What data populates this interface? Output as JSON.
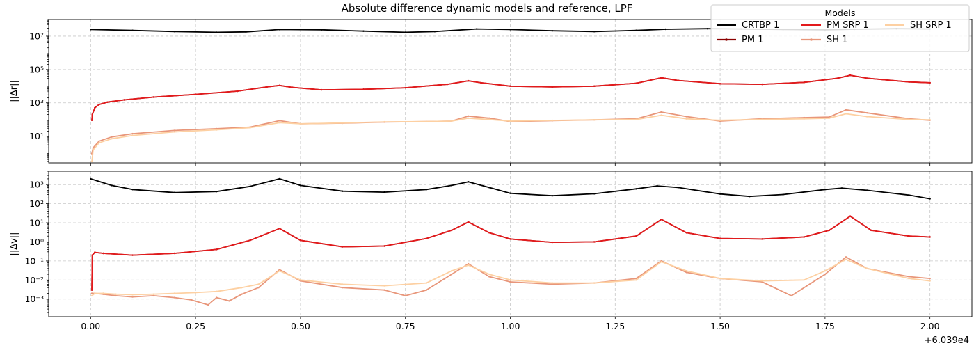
{
  "figure_title": "Absolute difference dynamic models and reference, LPF",
  "x_offset_label": "+6.039e4",
  "legend": {
    "title": "Models",
    "placement": "upper-right",
    "entries": [
      {
        "label": "CRTBP 1",
        "color": "#000000"
      },
      {
        "label": "PM 1",
        "color": "#8b0000"
      },
      {
        "label": "PM SRP 1",
        "color": "#e31a1c"
      },
      {
        "label": "SH 1",
        "color": "#e8967a"
      },
      {
        "label": "SH SRP 1",
        "color": "#fdd0a2"
      }
    ]
  },
  "chart_data": [
    {
      "type": "line",
      "ylabel": "||Δr||",
      "yscale": "log",
      "ylim": [
        0.25,
        100000000
      ],
      "xlim": [
        -0.1,
        2.1
      ],
      "grid": true,
      "xticks": [
        0.0,
        0.25,
        0.5,
        0.75,
        1.0,
        1.25,
        1.5,
        1.75,
        2.0
      ],
      "xtick_labels_visible": false,
      "yticks": [
        10,
        1000,
        100000,
        10000000
      ],
      "ytick_labels": [
        "10^1",
        "10^3",
        "10^5",
        "10^7"
      ],
      "series": [
        {
          "name": "CRTBP 1",
          "color": "#000000",
          "x": [
            0,
            0.1,
            0.2,
            0.3,
            0.37,
            0.45,
            0.55,
            0.65,
            0.75,
            0.82,
            0.92,
            1.0,
            1.1,
            1.2,
            1.3,
            1.37,
            1.47,
            1.55,
            1.65,
            1.75,
            1.82,
            1.92,
            2.0
          ],
          "y": [
            25000000,
            22000000,
            19000000,
            17000000,
            18000000,
            25000000,
            24000000,
            20000000,
            17000000,
            19000000,
            27000000,
            25000000,
            21000000,
            19000000,
            22000000,
            26000000,
            28000000,
            27000000,
            25000000,
            24000000,
            26000000,
            28000000,
            27000000
          ]
        },
        {
          "name": "PM 1",
          "color": "#8b0000",
          "x": [
            0.003,
            0.004,
            0.01,
            0.02,
            0.04,
            0.08,
            0.15,
            0.25,
            0.35,
            0.42,
            0.45,
            0.48,
            0.55,
            0.65,
            0.75,
            0.85,
            0.9,
            0.93,
            1.0,
            1.1,
            1.2,
            1.3,
            1.36,
            1.4,
            1.5,
            1.6,
            1.7,
            1.78,
            1.81,
            1.85,
            1.95,
            2.0
          ],
          "y": [
            90,
            200,
            500,
            800,
            1100,
            1500,
            2200,
            3200,
            5000,
            9000,
            11000,
            8500,
            6000,
            6500,
            8000,
            13000,
            21000,
            16000,
            10000,
            9000,
            10000,
            15000,
            32000,
            22000,
            14000,
            13000,
            17000,
            30000,
            45000,
            30000,
            18000,
            16000
          ]
        },
        {
          "name": "PM SRP 1",
          "color": "#e31a1c",
          "x": [
            0.003,
            0.004,
            0.01,
            0.02,
            0.04,
            0.08,
            0.15,
            0.25,
            0.35,
            0.42,
            0.45,
            0.48,
            0.55,
            0.65,
            0.75,
            0.85,
            0.9,
            0.93,
            1.0,
            1.1,
            1.2,
            1.3,
            1.36,
            1.4,
            1.5,
            1.6,
            1.7,
            1.78,
            1.81,
            1.85,
            1.95,
            2.0
          ],
          "y": [
            90,
            200,
            500,
            800,
            1100,
            1500,
            2200,
            3200,
            5000,
            9000,
            11000,
            8500,
            6000,
            6500,
            8000,
            13000,
            21000,
            16000,
            10000,
            9000,
            10000,
            15000,
            32000,
            22000,
            14000,
            13000,
            17000,
            30000,
            45000,
            30000,
            18000,
            16000
          ]
        },
        {
          "name": "SH 1",
          "color": "#e8967a",
          "x": [
            0.003,
            0.006,
            0.02,
            0.05,
            0.1,
            0.2,
            0.3,
            0.38,
            0.45,
            0.5,
            0.6,
            0.7,
            0.8,
            0.86,
            0.9,
            0.95,
            1.0,
            1.1,
            1.2,
            1.3,
            1.36,
            1.42,
            1.5,
            1.6,
            1.7,
            1.76,
            1.8,
            1.85,
            1.95,
            2.0
          ],
          "y": [
            0.9,
            2,
            5,
            9,
            14,
            22,
            28,
            35,
            85,
            55,
            60,
            70,
            75,
            80,
            160,
            120,
            75,
            85,
            95,
            110,
            280,
            150,
            80,
            110,
            130,
            140,
            380,
            250,
            110,
            90
          ]
        },
        {
          "name": "SH SRP 1",
          "color": "#fdd0a2",
          "x": [
            0.003,
            0.006,
            0.02,
            0.05,
            0.1,
            0.2,
            0.3,
            0.38,
            0.45,
            0.5,
            0.6,
            0.7,
            0.8,
            0.86,
            0.9,
            0.95,
            1.0,
            1.1,
            1.2,
            1.3,
            1.36,
            1.42,
            1.5,
            1.6,
            1.7,
            1.76,
            1.8,
            1.85,
            1.95,
            2.0
          ],
          "y": [
            0.3,
            1.5,
            4,
            7,
            11,
            18,
            24,
            32,
            65,
            55,
            62,
            72,
            75,
            80,
            120,
            100,
            80,
            88,
            95,
            100,
            180,
            110,
            90,
            100,
            110,
            120,
            220,
            150,
            100,
            95
          ]
        }
      ]
    },
    {
      "type": "line",
      "ylabel": "||Δv||",
      "yscale": "log",
      "ylim": [
        0.00012,
        5000
      ],
      "xlim": [
        -0.1,
        2.1
      ],
      "grid": true,
      "xticks": [
        0.0,
        0.25,
        0.5,
        0.75,
        1.0,
        1.25,
        1.5,
        1.75,
        2.0
      ],
      "xtick_labels": [
        "0.00",
        "0.25",
        "0.50",
        "0.75",
        "1.00",
        "1.25",
        "1.50",
        "1.75",
        "2.00"
      ],
      "yticks": [
        0.001,
        0.01,
        0.1,
        1,
        10,
        100,
        1000
      ],
      "ytick_labels": [
        "10^-3",
        "10^-2",
        "10^-1",
        "10^0",
        "10^1",
        "10^2",
        "10^3"
      ],
      "series": [
        {
          "name": "CRTBP 1",
          "color": "#000000",
          "x": [
            0,
            0.05,
            0.1,
            0.2,
            0.3,
            0.38,
            0.45,
            0.5,
            0.6,
            0.7,
            0.8,
            0.86,
            0.9,
            0.95,
            1.0,
            1.1,
            1.2,
            1.3,
            1.35,
            1.4,
            1.5,
            1.57,
            1.65,
            1.75,
            1.79,
            1.85,
            1.95,
            2.0
          ],
          "y": [
            2000,
            900,
            550,
            380,
            430,
            800,
            2000,
            900,
            450,
            400,
            550,
            900,
            1400,
            700,
            350,
            260,
            330,
            600,
            850,
            700,
            320,
            240,
            300,
            550,
            650,
            500,
            280,
            180
          ]
        },
        {
          "name": "PM 1",
          "color": "#8b0000",
          "x": [
            0.003,
            0.004,
            0.01,
            0.03,
            0.1,
            0.2,
            0.3,
            0.38,
            0.45,
            0.5,
            0.6,
            0.7,
            0.8,
            0.86,
            0.9,
            0.95,
            1.0,
            1.1,
            1.2,
            1.3,
            1.36,
            1.42,
            1.5,
            1.6,
            1.7,
            1.76,
            1.81,
            1.86,
            1.95,
            2.0
          ],
          "y": [
            0.003,
            0.2,
            0.28,
            0.25,
            0.2,
            0.25,
            0.4,
            1.2,
            5,
            1.2,
            0.55,
            0.6,
            1.5,
            4,
            11,
            3,
            1.4,
            0.95,
            1.0,
            2,
            15,
            3,
            1.5,
            1.4,
            1.8,
            4,
            22,
            4,
            2,
            1.8
          ]
        },
        {
          "name": "PM SRP 1",
          "color": "#e31a1c",
          "x": [
            0.003,
            0.004,
            0.01,
            0.03,
            0.1,
            0.2,
            0.3,
            0.38,
            0.45,
            0.5,
            0.6,
            0.7,
            0.8,
            0.86,
            0.9,
            0.95,
            1.0,
            1.1,
            1.2,
            1.3,
            1.36,
            1.42,
            1.5,
            1.6,
            1.7,
            1.76,
            1.81,
            1.86,
            1.95,
            2.0
          ],
          "y": [
            0.003,
            0.2,
            0.28,
            0.25,
            0.2,
            0.25,
            0.4,
            1.2,
            5,
            1.2,
            0.55,
            0.6,
            1.5,
            4,
            11,
            3,
            1.4,
            0.95,
            1.0,
            2,
            15,
            3,
            1.5,
            1.4,
            1.8,
            4,
            22,
            4,
            2,
            1.8
          ]
        },
        {
          "name": "SH 1",
          "color": "#e8967a",
          "x": [
            0.003,
            0.01,
            0.03,
            0.06,
            0.1,
            0.15,
            0.2,
            0.24,
            0.28,
            0.3,
            0.33,
            0.36,
            0.4,
            0.45,
            0.5,
            0.6,
            0.7,
            0.75,
            0.8,
            0.86,
            0.9,
            0.95,
            1.0,
            1.1,
            1.2,
            1.3,
            1.36,
            1.42,
            1.5,
            1.6,
            1.67,
            1.75,
            1.8,
            1.85,
            1.95,
            2.0
          ],
          "y": [
            0.002,
            0.002,
            0.0018,
            0.0015,
            0.0013,
            0.0015,
            0.0012,
            0.0009,
            0.0005,
            0.0012,
            0.0008,
            0.0018,
            0.004,
            0.035,
            0.009,
            0.004,
            0.003,
            0.0015,
            0.003,
            0.02,
            0.07,
            0.015,
            0.008,
            0.006,
            0.007,
            0.012,
            0.1,
            0.025,
            0.012,
            0.008,
            0.0015,
            0.02,
            0.16,
            0.04,
            0.015,
            0.012
          ]
        },
        {
          "name": "SH SRP 1",
          "color": "#fdd0a2",
          "x": [
            0.003,
            0.01,
            0.03,
            0.06,
            0.1,
            0.15,
            0.2,
            0.25,
            0.3,
            0.36,
            0.4,
            0.45,
            0.5,
            0.6,
            0.7,
            0.8,
            0.86,
            0.9,
            0.95,
            1.0,
            1.1,
            1.2,
            1.3,
            1.36,
            1.42,
            1.5,
            1.6,
            1.7,
            1.75,
            1.8,
            1.85,
            1.95,
            2.0
          ],
          "y": [
            0.0015,
            0.002,
            0.002,
            0.0018,
            0.0017,
            0.0018,
            0.002,
            0.0022,
            0.0025,
            0.004,
            0.006,
            0.03,
            0.01,
            0.006,
            0.005,
            0.007,
            0.03,
            0.06,
            0.02,
            0.01,
            0.007,
            0.007,
            0.01,
            0.09,
            0.03,
            0.012,
            0.009,
            0.01,
            0.03,
            0.12,
            0.04,
            0.012,
            0.009
          ]
        }
      ]
    }
  ]
}
